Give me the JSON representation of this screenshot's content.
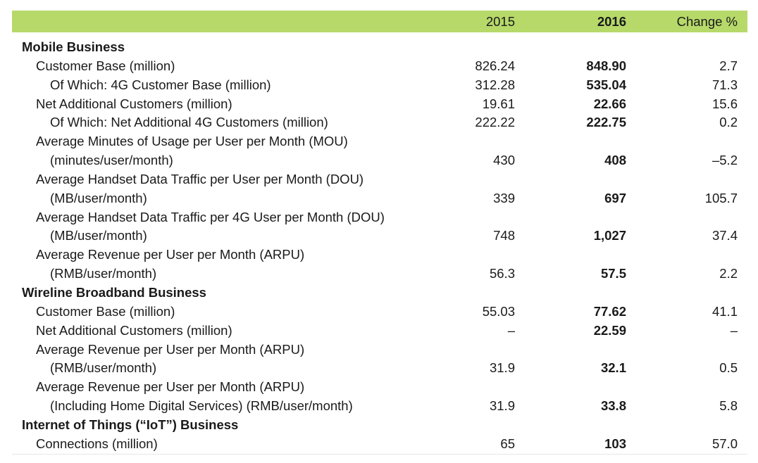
{
  "header": {
    "col_2015": "2015",
    "col_2016": "2016",
    "col_change": "Change %"
  },
  "colors": {
    "header_bg": "#b6d96a"
  },
  "sections": [
    {
      "title": "Mobile Business",
      "rows": [
        {
          "label": "Customer Base (million)",
          "indent": 1,
          "v2015": "826.24",
          "v2016": "848.90",
          "change": "2.7"
        },
        {
          "label": "Of Which: 4G Customer Base (million)",
          "indent": 2,
          "v2015": "312.28",
          "v2016": "535.04",
          "change": "71.3"
        },
        {
          "label": "Net Additional Customers (million)",
          "indent": 1,
          "v2015": "19.61",
          "v2016": "22.66",
          "change": "15.6"
        },
        {
          "label": "Of Which: Net Additional 4G Customers (million)",
          "indent": 2,
          "v2015": "222.22",
          "v2016": "222.75",
          "change": "0.2"
        },
        {
          "label": "Average Minutes of Usage per User per Month (MOU)",
          "indent": 1,
          "v2015": "",
          "v2016": "",
          "change": ""
        },
        {
          "label": "(minutes/user/month)",
          "indent": 2,
          "v2015": "430",
          "v2016": "408",
          "change": "–5.2"
        },
        {
          "label": "Average Handset Data Traffic per User per Month (DOU)",
          "indent": 1,
          "v2015": "",
          "v2016": "",
          "change": ""
        },
        {
          "label": "(MB/user/month)",
          "indent": 2,
          "v2015": "339",
          "v2016": "697",
          "change": "105.7"
        },
        {
          "label": "Average Handset Data Traffic per 4G User per Month (DOU)",
          "indent": 1,
          "v2015": "",
          "v2016": "",
          "change": ""
        },
        {
          "label": "(MB/user/month)",
          "indent": 2,
          "v2015": "748",
          "v2016": "1,027",
          "change": "37.4"
        },
        {
          "label": "Average Revenue per User per Month (ARPU)",
          "indent": 1,
          "v2015": "",
          "v2016": "",
          "change": ""
        },
        {
          "label": "(RMB/user/month)",
          "indent": 2,
          "v2015": "56.3",
          "v2016": "57.5",
          "change": "2.2"
        }
      ]
    },
    {
      "title": "Wireline Broadband Business",
      "rows": [
        {
          "label": "Customer Base (million)",
          "indent": 1,
          "v2015": "55.03",
          "v2016": "77.62",
          "change": "41.1"
        },
        {
          "label": "Net Additional Customers (million)",
          "indent": 1,
          "v2015": "–",
          "v2016": "22.59",
          "change": "–"
        },
        {
          "label": "Average Revenue per User per Month (ARPU)",
          "indent": 1,
          "v2015": "",
          "v2016": "",
          "change": ""
        },
        {
          "label": "(RMB/user/month)",
          "indent": 2,
          "v2015": "31.9",
          "v2016": "32.1",
          "change": "0.5"
        },
        {
          "label": "Average Revenue per User per Month (ARPU)",
          "indent": 1,
          "v2015": "",
          "v2016": "",
          "change": ""
        },
        {
          "label": "(Including Home Digital Services) (RMB/user/month)",
          "indent": 2,
          "v2015": "31.9",
          "v2016": "33.8",
          "change": "5.8"
        }
      ]
    },
    {
      "title": "Internet of Things (“IoT”) Business",
      "rows": [
        {
          "label": "Connections (million)",
          "indent": 1,
          "v2015": "65",
          "v2016": "103",
          "change": "57.0"
        }
      ]
    }
  ]
}
